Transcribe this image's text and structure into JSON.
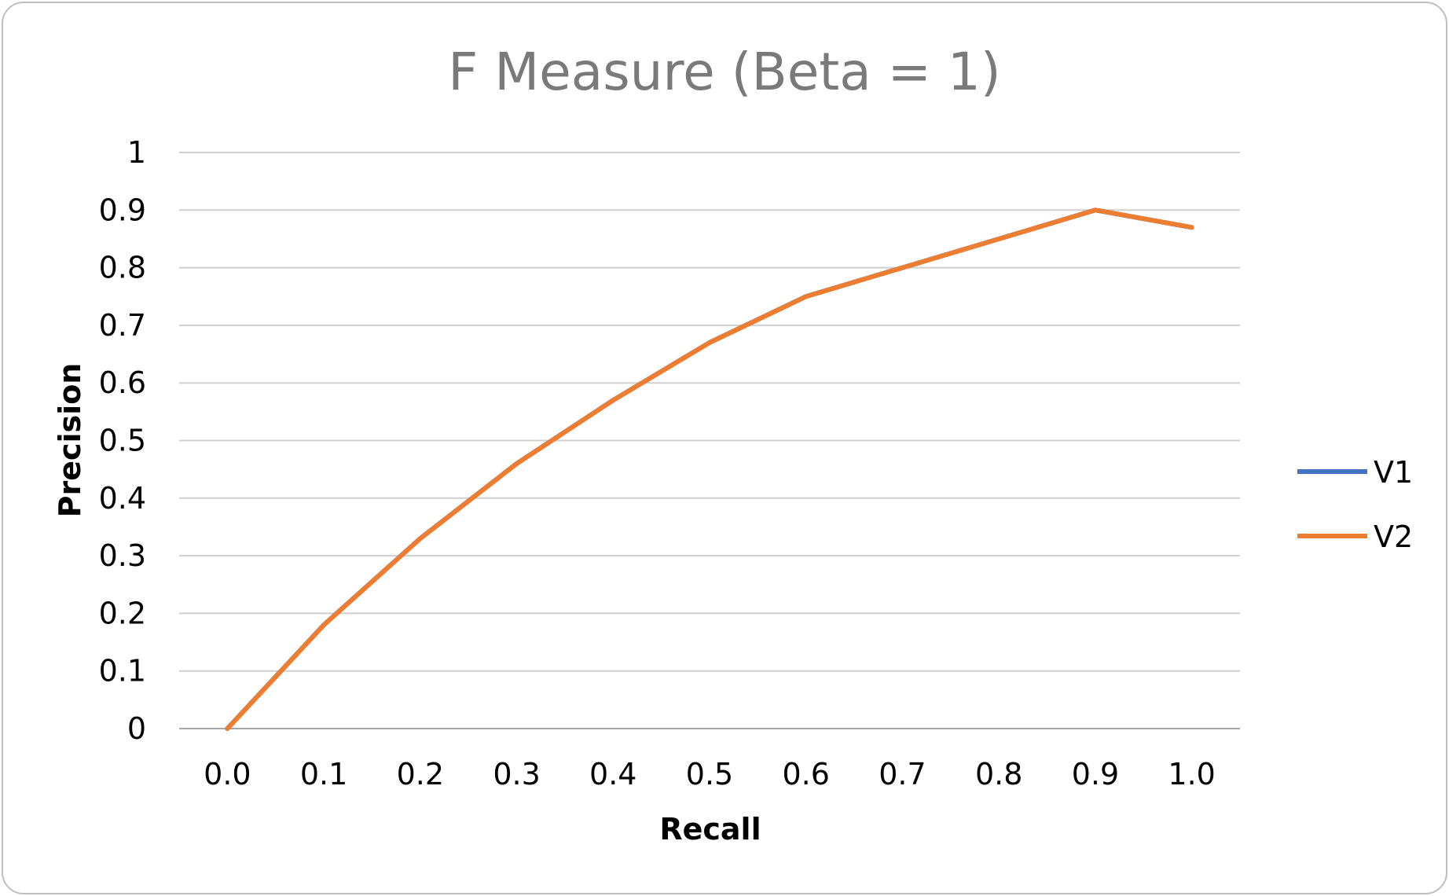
{
  "chart_data": {
    "type": "line",
    "title": "F Measure (Beta = 1)",
    "xlabel": "Recall",
    "ylabel": "Precision",
    "categories": [
      "0.0",
      "0.1",
      "0.2",
      "0.3",
      "0.4",
      "0.5",
      "0.6",
      "0.7",
      "0.8",
      "0.9",
      "1.0"
    ],
    "y_ticks": [
      "0",
      "0.1",
      "0.2",
      "0.3",
      "0.4",
      "0.5",
      "0.6",
      "0.7",
      "0.8",
      "0.9",
      "1"
    ],
    "ylim": [
      0,
      1
    ],
    "grid": true,
    "legend_position": "right",
    "series": [
      {
        "name": "V1",
        "color": "#4472c4",
        "values": [
          0,
          0.18,
          0.33,
          0.46,
          0.57,
          0.67,
          0.75,
          0.8,
          0.85,
          0.9,
          0.87
        ]
      },
      {
        "name": "V2",
        "color": "#ed7d31",
        "values": [
          0,
          0.18,
          0.33,
          0.46,
          0.57,
          0.67,
          0.75,
          0.8,
          0.85,
          0.9,
          0.87
        ]
      }
    ]
  }
}
